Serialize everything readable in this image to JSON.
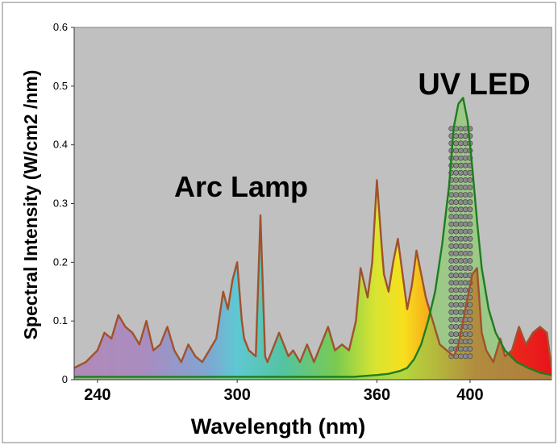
{
  "chart_data": {
    "type": "line",
    "title": "",
    "xlabel": "Wavelength (nm)",
    "ylabel": "Spectral Intensity (W/cm2 /nm)",
    "xlim": [
      230,
      435
    ],
    "ylim": [
      0,
      0.6
    ],
    "x_ticks": [
      240,
      300,
      360,
      400
    ],
    "x_tick_labels": [
      "240",
      "300",
      "360",
      "400"
    ],
    "y_ticks": [
      0,
      0.1,
      0.2,
      0.3,
      0.4,
      0.5,
      0.6
    ],
    "y_tick_labels": [
      "0",
      "0.1",
      "0.2",
      "0.3",
      "0.4",
      "0.5",
      "0.6"
    ],
    "grid": false,
    "legend": "none",
    "background_color": "#c0c0c0",
    "series": [
      {
        "name": "Arc Lamp",
        "color": "#a0522d",
        "x": [
          230,
          235,
          240,
          243,
          246,
          249,
          252,
          255,
          258,
          261,
          264,
          267,
          270,
          273,
          276,
          279,
          282,
          285,
          288,
          291,
          294,
          296,
          298,
          300,
          302,
          303,
          305,
          308,
          310,
          312,
          313,
          315,
          318,
          320,
          322,
          324,
          327,
          330,
          333,
          336,
          339,
          342,
          345,
          348,
          351,
          353,
          356,
          358,
          360,
          362,
          363,
          365,
          367,
          369,
          371,
          373,
          375,
          377,
          379,
          381,
          384,
          387,
          390,
          393,
          395,
          397,
          399,
          401,
          403,
          405,
          407,
          410,
          413,
          415,
          418,
          421,
          424,
          427,
          430,
          433,
          435
        ],
        "y": [
          0.02,
          0.03,
          0.05,
          0.08,
          0.07,
          0.11,
          0.09,
          0.08,
          0.06,
          0.1,
          0.05,
          0.06,
          0.09,
          0.05,
          0.03,
          0.06,
          0.04,
          0.03,
          0.05,
          0.07,
          0.15,
          0.12,
          0.17,
          0.2,
          0.1,
          0.07,
          0.05,
          0.04,
          0.28,
          0.04,
          0.03,
          0.05,
          0.08,
          0.06,
          0.04,
          0.05,
          0.03,
          0.06,
          0.03,
          0.06,
          0.09,
          0.05,
          0.06,
          0.05,
          0.1,
          0.19,
          0.14,
          0.2,
          0.34,
          0.23,
          0.18,
          0.15,
          0.2,
          0.24,
          0.18,
          0.12,
          0.16,
          0.22,
          0.18,
          0.14,
          0.1,
          0.06,
          0.05,
          0.04,
          0.06,
          0.1,
          0.14,
          0.18,
          0.19,
          0.08,
          0.05,
          0.03,
          0.07,
          0.04,
          0.05,
          0.09,
          0.06,
          0.08,
          0.09,
          0.08,
          0.02
        ]
      },
      {
        "name": "UV LED",
        "color": "#1e7d1e",
        "x": [
          230,
          260,
          290,
          320,
          340,
          350,
          360,
          365,
          370,
          373,
          376,
          379,
          382,
          385,
          388,
          391,
          393,
          395,
          397,
          399,
          401,
          403,
          405,
          408,
          411,
          415,
          420,
          425,
          430,
          435
        ],
        "y": [
          0.005,
          0.005,
          0.005,
          0.005,
          0.005,
          0.005,
          0.008,
          0.01,
          0.015,
          0.02,
          0.035,
          0.06,
          0.1,
          0.15,
          0.23,
          0.33,
          0.43,
          0.47,
          0.48,
          0.44,
          0.36,
          0.27,
          0.19,
          0.12,
          0.08,
          0.05,
          0.03,
          0.02,
          0.012,
          0.008
        ]
      }
    ],
    "annotations": [
      "Arc Lamp",
      "UV LED"
    ]
  }
}
